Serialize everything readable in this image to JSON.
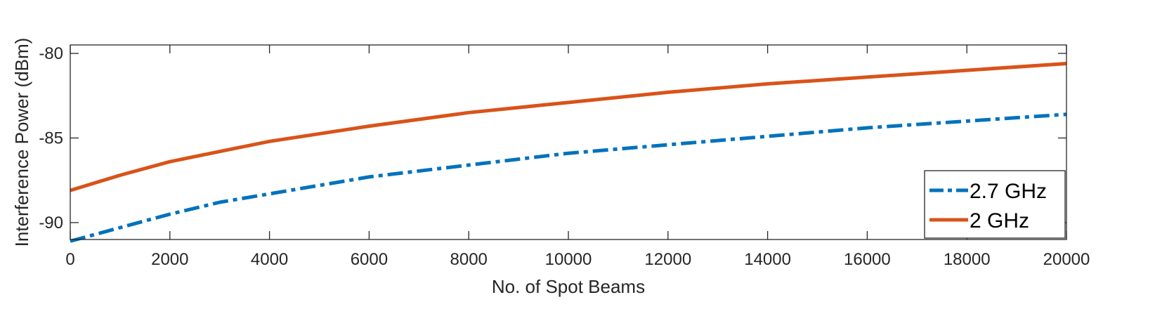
{
  "chart_data": {
    "type": "line",
    "title": "",
    "xlabel": "No. of Spot Beams",
    "ylabel": "Interference Power (dBm)",
    "xlim": [
      0,
      20000
    ],
    "ylim": [
      -91,
      -79.5
    ],
    "xticks": [
      0,
      2000,
      4000,
      6000,
      8000,
      10000,
      12000,
      14000,
      16000,
      18000,
      20000
    ],
    "yticks": [
      -90,
      -85,
      -80
    ],
    "grid": false,
    "legend_position": "bottom-right",
    "series": [
      {
        "name": "2.7 GHz",
        "color": "#0072bd",
        "line_style": "dash-dot",
        "x": [
          0,
          1000,
          2000,
          3000,
          4000,
          6000,
          8000,
          10000,
          12000,
          14000,
          16000,
          18000,
          20000
        ],
        "y": [
          -91.1,
          -90.3,
          -89.5,
          -88.8,
          -88.3,
          -87.3,
          -86.6,
          -85.9,
          -85.4,
          -84.9,
          -84.4,
          -84.0,
          -83.6
        ]
      },
      {
        "name": "2 GHz",
        "color": "#d95319",
        "line_style": "solid",
        "x": [
          0,
          1000,
          2000,
          3000,
          4000,
          6000,
          8000,
          10000,
          12000,
          14000,
          16000,
          18000,
          20000
        ],
        "y": [
          -88.1,
          -87.2,
          -86.4,
          -85.8,
          -85.2,
          -84.3,
          -83.5,
          -82.9,
          -82.3,
          -81.8,
          -81.4,
          -81.0,
          -80.6
        ]
      }
    ]
  }
}
